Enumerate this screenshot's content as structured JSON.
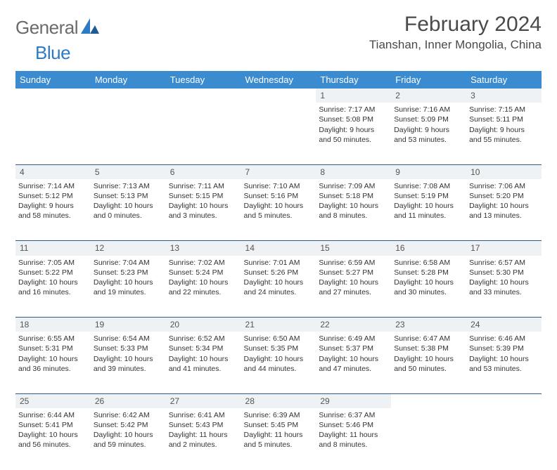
{
  "logo": {
    "general": "General",
    "blue": "Blue"
  },
  "title": "February 2024",
  "location": "Tianshan, Inner Mongolia, China",
  "day_headers": [
    "Sunday",
    "Monday",
    "Tuesday",
    "Wednesday",
    "Thursday",
    "Friday",
    "Saturday"
  ],
  "colors": {
    "header_bg": "#3a8bd0",
    "header_fg": "#ffffff",
    "daynum_bg": "#eef2f5",
    "rule": "#2d5a8c",
    "logo_blue": "#2d7bc4",
    "logo_grey": "#6b6b6b"
  },
  "weeks": [
    [
      null,
      null,
      null,
      null,
      {
        "n": "1",
        "sr": "7:17 AM",
        "ss": "5:08 PM",
        "dl": "9 hours and 50 minutes."
      },
      {
        "n": "2",
        "sr": "7:16 AM",
        "ss": "5:09 PM",
        "dl": "9 hours and 53 minutes."
      },
      {
        "n": "3",
        "sr": "7:15 AM",
        "ss": "5:11 PM",
        "dl": "9 hours and 55 minutes."
      }
    ],
    [
      {
        "n": "4",
        "sr": "7:14 AM",
        "ss": "5:12 PM",
        "dl": "9 hours and 58 minutes."
      },
      {
        "n": "5",
        "sr": "7:13 AM",
        "ss": "5:13 PM",
        "dl": "10 hours and 0 minutes."
      },
      {
        "n": "6",
        "sr": "7:11 AM",
        "ss": "5:15 PM",
        "dl": "10 hours and 3 minutes."
      },
      {
        "n": "7",
        "sr": "7:10 AM",
        "ss": "5:16 PM",
        "dl": "10 hours and 5 minutes."
      },
      {
        "n": "8",
        "sr": "7:09 AM",
        "ss": "5:18 PM",
        "dl": "10 hours and 8 minutes."
      },
      {
        "n": "9",
        "sr": "7:08 AM",
        "ss": "5:19 PM",
        "dl": "10 hours and 11 minutes."
      },
      {
        "n": "10",
        "sr": "7:06 AM",
        "ss": "5:20 PM",
        "dl": "10 hours and 13 minutes."
      }
    ],
    [
      {
        "n": "11",
        "sr": "7:05 AM",
        "ss": "5:22 PM",
        "dl": "10 hours and 16 minutes."
      },
      {
        "n": "12",
        "sr": "7:04 AM",
        "ss": "5:23 PM",
        "dl": "10 hours and 19 minutes."
      },
      {
        "n": "13",
        "sr": "7:02 AM",
        "ss": "5:24 PM",
        "dl": "10 hours and 22 minutes."
      },
      {
        "n": "14",
        "sr": "7:01 AM",
        "ss": "5:26 PM",
        "dl": "10 hours and 24 minutes."
      },
      {
        "n": "15",
        "sr": "6:59 AM",
        "ss": "5:27 PM",
        "dl": "10 hours and 27 minutes."
      },
      {
        "n": "16",
        "sr": "6:58 AM",
        "ss": "5:28 PM",
        "dl": "10 hours and 30 minutes."
      },
      {
        "n": "17",
        "sr": "6:57 AM",
        "ss": "5:30 PM",
        "dl": "10 hours and 33 minutes."
      }
    ],
    [
      {
        "n": "18",
        "sr": "6:55 AM",
        "ss": "5:31 PM",
        "dl": "10 hours and 36 minutes."
      },
      {
        "n": "19",
        "sr": "6:54 AM",
        "ss": "5:33 PM",
        "dl": "10 hours and 39 minutes."
      },
      {
        "n": "20",
        "sr": "6:52 AM",
        "ss": "5:34 PM",
        "dl": "10 hours and 41 minutes."
      },
      {
        "n": "21",
        "sr": "6:50 AM",
        "ss": "5:35 PM",
        "dl": "10 hours and 44 minutes."
      },
      {
        "n": "22",
        "sr": "6:49 AM",
        "ss": "5:37 PM",
        "dl": "10 hours and 47 minutes."
      },
      {
        "n": "23",
        "sr": "6:47 AM",
        "ss": "5:38 PM",
        "dl": "10 hours and 50 minutes."
      },
      {
        "n": "24",
        "sr": "6:46 AM",
        "ss": "5:39 PM",
        "dl": "10 hours and 53 minutes."
      }
    ],
    [
      {
        "n": "25",
        "sr": "6:44 AM",
        "ss": "5:41 PM",
        "dl": "10 hours and 56 minutes."
      },
      {
        "n": "26",
        "sr": "6:42 AM",
        "ss": "5:42 PM",
        "dl": "10 hours and 59 minutes."
      },
      {
        "n": "27",
        "sr": "6:41 AM",
        "ss": "5:43 PM",
        "dl": "11 hours and 2 minutes."
      },
      {
        "n": "28",
        "sr": "6:39 AM",
        "ss": "5:45 PM",
        "dl": "11 hours and 5 minutes."
      },
      {
        "n": "29",
        "sr": "6:37 AM",
        "ss": "5:46 PM",
        "dl": "11 hours and 8 minutes."
      },
      null,
      null
    ]
  ],
  "labels": {
    "sunrise": "Sunrise:",
    "sunset": "Sunset:",
    "daylight": "Daylight:"
  }
}
